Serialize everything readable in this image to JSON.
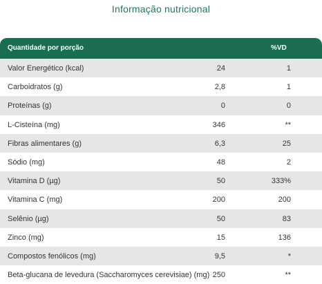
{
  "title": "Informação nutricional",
  "table": {
    "headers": [
      "Quantidade por porção",
      "",
      "%VD"
    ],
    "rows": [
      {
        "label": "Valor Energético (kcal)",
        "amount": "24",
        "vd": "1"
      },
      {
        "label": "Carboidratos (g)",
        "amount": "2,8",
        "vd": "1"
      },
      {
        "label": "Proteínas (g)",
        "amount": "0",
        "vd": "0"
      },
      {
        "label": "L-Cisteína (mg)",
        "amount": "346",
        "vd": "**"
      },
      {
        "label": "Fibras alimentares (g)",
        "amount": "6,3",
        "vd": "25"
      },
      {
        "label": "Sódio (mg)",
        "amount": "48",
        "vd": "2"
      },
      {
        "label": "Vitamina D (µg)",
        "amount": "50",
        "vd": "333%"
      },
      {
        "label": "Vitamina C (mg)",
        "amount": "200",
        "vd": "200"
      },
      {
        "label": "Selênio (µg)",
        "amount": "50",
        "vd": "83"
      },
      {
        "label": "Zinco (mg)",
        "amount": "15",
        "vd": "136"
      },
      {
        "label": "Compostos fenólicos (mg)",
        "amount": "9,5",
        "vd": "*"
      },
      {
        "label": "Beta-glucana de levedura (Saccharomyces cerevisiae) (mg)",
        "amount": "250",
        "vd": "**"
      }
    ]
  },
  "colors": {
    "header_bg": "#1a6e4f",
    "title": "#1f7a57",
    "shade_row": "#e6e6e6"
  }
}
